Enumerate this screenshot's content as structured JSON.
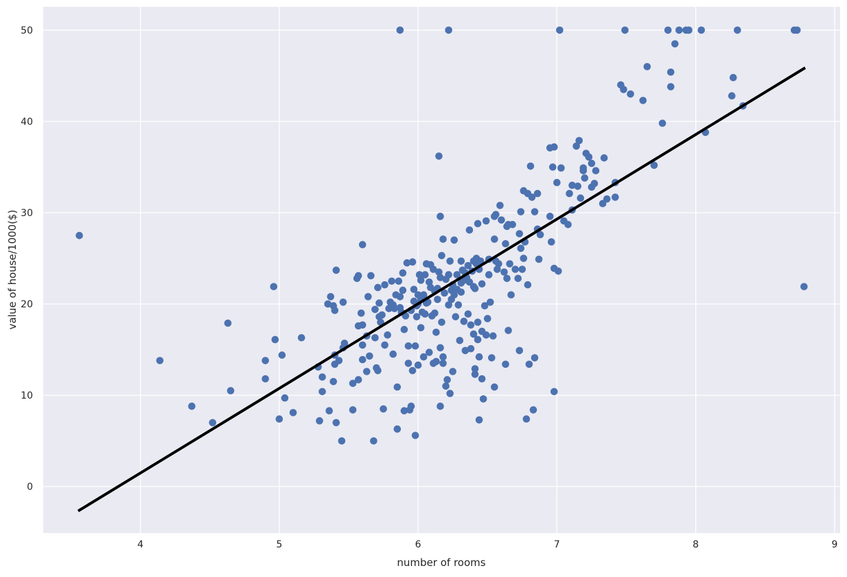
{
  "chart_data": {
    "type": "scatter",
    "title": "",
    "xlabel": "number of rooms",
    "ylabel": "value of house/1000($)",
    "xlim": [
      3.3,
      9.04
    ],
    "ylim": [
      -5.1,
      52.55
    ],
    "xticks": [
      4,
      5,
      6,
      7,
      8,
      9
    ],
    "yticks": [
      0,
      10,
      20,
      30,
      40,
      50
    ],
    "grid": true,
    "colors": {
      "background": "#eaeaf2",
      "grid": "#ffffff",
      "points": "#4c72b0",
      "fit_line": "#000000"
    },
    "regression_line": {
      "x": [
        3.56,
        8.78
      ],
      "y": [
        -2.6,
        45.8
      ]
    },
    "points": [
      [
        3.56,
        27.5
      ],
      [
        4.14,
        13.8
      ],
      [
        4.37,
        8.8
      ],
      [
        4.52,
        7.0
      ],
      [
        4.63,
        17.9
      ],
      [
        4.65,
        10.5
      ],
      [
        4.9,
        11.8
      ],
      [
        4.9,
        13.8
      ],
      [
        4.96,
        21.9
      ],
      [
        4.97,
        16.1
      ],
      [
        5.0,
        7.4
      ],
      [
        5.02,
        14.4
      ],
      [
        5.04,
        9.7
      ],
      [
        5.1,
        8.1
      ],
      [
        5.16,
        16.3
      ],
      [
        5.28,
        13.1
      ],
      [
        5.29,
        7.2
      ],
      [
        5.31,
        12.0
      ],
      [
        5.31,
        10.4
      ],
      [
        5.35,
        20.0
      ],
      [
        5.36,
        8.3
      ],
      [
        5.37,
        20.8
      ],
      [
        5.39,
        19.8
      ],
      [
        5.4,
        19.3
      ],
      [
        5.4,
        14.4
      ],
      [
        5.4,
        13.4
      ],
      [
        5.39,
        11.5
      ],
      [
        5.41,
        23.7
      ],
      [
        5.41,
        7.0
      ],
      [
        5.43,
        13.8
      ],
      [
        5.45,
        5.0
      ],
      [
        5.46,
        20.2
      ],
      [
        5.46,
        15.2
      ],
      [
        5.47,
        15.7
      ],
      [
        5.53,
        8.4
      ],
      [
        5.53,
        11.3
      ],
      [
        5.56,
        22.8
      ],
      [
        5.57,
        23.1
      ],
      [
        5.57,
        17.6
      ],
      [
        5.57,
        11.7
      ],
      [
        5.59,
        19.0
      ],
      [
        5.6,
        26.5
      ],
      [
        5.6,
        17.7
      ],
      [
        5.6,
        15.5
      ],
      [
        5.6,
        13.9
      ],
      [
        5.63,
        12.6
      ],
      [
        5.63,
        16.5
      ],
      [
        5.64,
        20.8
      ],
      [
        5.65,
        14.3
      ],
      [
        5.66,
        23.1
      ],
      [
        5.68,
        5.0
      ],
      [
        5.69,
        19.4
      ],
      [
        5.69,
        16.3
      ],
      [
        5.7,
        13.0
      ],
      [
        5.71,
        21.8
      ],
      [
        5.71,
        12.7
      ],
      [
        5.72,
        20.1
      ],
      [
        5.72,
        18.6
      ],
      [
        5.73,
        18.0
      ],
      [
        5.74,
        18.8
      ],
      [
        5.75,
        8.5
      ],
      [
        5.76,
        22.1
      ],
      [
        5.76,
        15.5
      ],
      [
        5.78,
        16.6
      ],
      [
        5.79,
        19.5
      ],
      [
        5.8,
        20.2
      ],
      [
        5.81,
        22.5
      ],
      [
        5.82,
        14.5
      ],
      [
        5.83,
        19.5
      ],
      [
        5.84,
        21.0
      ],
      [
        5.85,
        10.9
      ],
      [
        5.85,
        6.3
      ],
      [
        5.86,
        22.5
      ],
      [
        5.87,
        20.8
      ],
      [
        5.87,
        50
      ],
      [
        5.88,
        19.1
      ],
      [
        5.89,
        21.5
      ],
      [
        5.89,
        23.4
      ],
      [
        5.9,
        8.3
      ],
      [
        5.9,
        17.2
      ],
      [
        5.92,
        24.5
      ],
      [
        5.93,
        15.4
      ],
      [
        5.93,
        13.5
      ],
      [
        5.94,
        8.4
      ],
      [
        5.95,
        19.3
      ],
      [
        5.95,
        8.8
      ],
      [
        5.96,
        24.6
      ],
      [
        5.96,
        12.7
      ],
      [
        5.97,
        21.6
      ],
      [
        5.98,
        15.4
      ],
      [
        5.98,
        5.6
      ],
      [
        5.99,
        18.6
      ],
      [
        5.99,
        19.8
      ],
      [
        6.0,
        21.0
      ],
      [
        6.0,
        13.3
      ],
      [
        6.01,
        23.2
      ],
      [
        6.02,
        22.6
      ],
      [
        6.02,
        17.4
      ],
      [
        6.03,
        19.1
      ],
      [
        6.04,
        14.2
      ],
      [
        6.04,
        21.0
      ],
      [
        6.05,
        23.2
      ],
      [
        6.06,
        24.4
      ],
      [
        6.07,
        20.2
      ],
      [
        6.08,
        14.7
      ],
      [
        6.09,
        21.8
      ],
      [
        6.09,
        24.3
      ],
      [
        6.1,
        18.7
      ],
      [
        6.11,
        13.5
      ],
      [
        6.11,
        23.8
      ],
      [
        6.12,
        21.4
      ],
      [
        6.13,
        16.9
      ],
      [
        6.13,
        13.7
      ],
      [
        6.14,
        21.7
      ],
      [
        6.15,
        36.2
      ],
      [
        6.15,
        23.5
      ],
      [
        6.16,
        15.2
      ],
      [
        6.16,
        8.8
      ],
      [
        6.16,
        29.6
      ],
      [
        6.17,
        18.0
      ],
      [
        6.17,
        25.3
      ],
      [
        6.18,
        27.1
      ],
      [
        6.18,
        14.2
      ],
      [
        6.18,
        13.5
      ],
      [
        6.2,
        11.0
      ],
      [
        6.21,
        11.7
      ],
      [
        6.22,
        50
      ],
      [
        6.22,
        23.2
      ],
      [
        6.22,
        19.9
      ],
      [
        6.23,
        10.2
      ],
      [
        6.23,
        24.7
      ],
      [
        6.24,
        21.5
      ],
      [
        6.25,
        22.1
      ],
      [
        6.25,
        12.6
      ],
      [
        6.26,
        27.0
      ],
      [
        6.26,
        21.0
      ],
      [
        6.27,
        18.6
      ],
      [
        6.28,
        23.2
      ],
      [
        6.29,
        19.9
      ],
      [
        6.3,
        16.0
      ],
      [
        6.31,
        21.3
      ],
      [
        6.31,
        24.7
      ],
      [
        6.31,
        22.3
      ],
      [
        6.32,
        23.7
      ],
      [
        6.33,
        18.1
      ],
      [
        6.34,
        14.9
      ],
      [
        6.35,
        22.9
      ],
      [
        6.36,
        24.2
      ],
      [
        6.36,
        18.9
      ],
      [
        6.37,
        28.1
      ],
      [
        6.38,
        15.1
      ],
      [
        6.38,
        17.7
      ],
      [
        6.39,
        23.6
      ],
      [
        6.4,
        21.9
      ],
      [
        6.4,
        24.7
      ],
      [
        6.4,
        16.7
      ],
      [
        6.41,
        12.3
      ],
      [
        6.41,
        12.9
      ],
      [
        6.41,
        21.7
      ],
      [
        6.42,
        25.0
      ],
      [
        6.43,
        16.1
      ],
      [
        6.43,
        18.0
      ],
      [
        6.43,
        28.8
      ],
      [
        6.44,
        7.3
      ],
      [
        6.44,
        14.2
      ],
      [
        6.44,
        23.8
      ],
      [
        6.45,
        24.7
      ],
      [
        6.46,
        22.2
      ],
      [
        6.46,
        17.0
      ],
      [
        6.46,
        11.8
      ],
      [
        6.47,
        9.6
      ],
      [
        6.48,
        19.8
      ],
      [
        6.49,
        29.1
      ],
      [
        6.49,
        16.6
      ],
      [
        6.5,
        18.4
      ],
      [
        6.51,
        24.9
      ],
      [
        6.51,
        23.2
      ],
      [
        6.52,
        20.2
      ],
      [
        6.53,
        14.1
      ],
      [
        6.54,
        16.5
      ],
      [
        6.55,
        10.9
      ],
      [
        6.55,
        27.1
      ],
      [
        6.55,
        29.6
      ],
      [
        6.56,
        24.7
      ],
      [
        6.56,
        29.8
      ],
      [
        6.57,
        23.8
      ],
      [
        6.58,
        24.4
      ],
      [
        6.59,
        30.8
      ],
      [
        6.6,
        29.2
      ],
      [
        6.62,
        23.5
      ],
      [
        6.63,
        26.6
      ],
      [
        6.63,
        13.4
      ],
      [
        6.64,
        28.5
      ],
      [
        6.64,
        22.8
      ],
      [
        6.65,
        28.7
      ],
      [
        6.65,
        17.1
      ],
      [
        6.66,
        24.4
      ],
      [
        6.67,
        21.0
      ],
      [
        6.68,
        28.7
      ],
      [
        6.7,
        23.8
      ],
      [
        6.72,
        22.8
      ],
      [
        6.73,
        14.9
      ],
      [
        6.73,
        27.7
      ],
      [
        6.74,
        30.1
      ],
      [
        6.74,
        26.1
      ],
      [
        6.75,
        23.8
      ],
      [
        6.76,
        32.4
      ],
      [
        6.76,
        25.0
      ],
      [
        6.77,
        26.8
      ],
      [
        6.78,
        7.4
      ],
      [
        6.79,
        32.1
      ],
      [
        6.79,
        22.1
      ],
      [
        6.8,
        13.4
      ],
      [
        6.81,
        35.1
      ],
      [
        6.82,
        31.7
      ],
      [
        6.83,
        8.4
      ],
      [
        6.84,
        14.1
      ],
      [
        6.84,
        30.1
      ],
      [
        6.86,
        32.1
      ],
      [
        6.86,
        28.2
      ],
      [
        6.87,
        24.9
      ],
      [
        6.88,
        27.6
      ],
      [
        6.95,
        29.6
      ],
      [
        6.95,
        37.1
      ],
      [
        6.96,
        26.8
      ],
      [
        6.97,
        35.0
      ],
      [
        6.98,
        10.4
      ],
      [
        6.98,
        23.9
      ],
      [
        6.98,
        37.2
      ],
      [
        7.0,
        33.3
      ],
      [
        7.01,
        23.6
      ],
      [
        7.02,
        50
      ],
      [
        7.03,
        34.9
      ],
      [
        7.05,
        29.1
      ],
      [
        7.08,
        28.7
      ],
      [
        7.09,
        32.1
      ],
      [
        7.11,
        33.0
      ],
      [
        7.11,
        30.3
      ],
      [
        7.14,
        37.3
      ],
      [
        7.15,
        32.9
      ],
      [
        7.16,
        37.9
      ],
      [
        7.17,
        31.6
      ],
      [
        7.19,
        34.9
      ],
      [
        7.19,
        34.6
      ],
      [
        7.2,
        33.8
      ],
      [
        7.21,
        36.5
      ],
      [
        7.23,
        36.1
      ],
      [
        7.25,
        32.8
      ],
      [
        7.25,
        35.4
      ],
      [
        7.27,
        33.2
      ],
      [
        7.28,
        34.6
      ],
      [
        7.33,
        31.0
      ],
      [
        7.34,
        36.0
      ],
      [
        7.36,
        31.5
      ],
      [
        7.42,
        33.3
      ],
      [
        7.42,
        31.7
      ],
      [
        7.46,
        44.0
      ],
      [
        7.48,
        43.5
      ],
      [
        7.49,
        50
      ],
      [
        7.53,
        43.0
      ],
      [
        7.62,
        42.3
      ],
      [
        7.65,
        46.0
      ],
      [
        7.7,
        35.2
      ],
      [
        7.76,
        39.8
      ],
      [
        7.8,
        50
      ],
      [
        7.82,
        45.4
      ],
      [
        7.82,
        43.8
      ],
      [
        7.85,
        48.5
      ],
      [
        7.88,
        50
      ],
      [
        7.93,
        50
      ],
      [
        7.95,
        50
      ],
      [
        8.04,
        50
      ],
      [
        8.07,
        38.8
      ],
      [
        8.26,
        42.8
      ],
      [
        8.27,
        44.8
      ],
      [
        8.3,
        50
      ],
      [
        8.34,
        41.7
      ],
      [
        8.71,
        50
      ],
      [
        8.73,
        50
      ],
      [
        8.78,
        21.9
      ],
      [
        5.97,
        20.3
      ],
      [
        6.02,
        20.6
      ],
      [
        6.06,
        20.1
      ],
      [
        6.14,
        20.5
      ],
      [
        6.19,
        21.2
      ],
      [
        6.24,
        20.5
      ],
      [
        6.33,
        22.6
      ],
      [
        6.37,
        22.4
      ],
      [
        6.05,
        18.9
      ],
      [
        5.91,
        18.7
      ],
      [
        6.12,
        19.0
      ],
      [
        6.2,
        22.7
      ],
      [
        6.28,
        21.6
      ],
      [
        6.34,
        23.4
      ],
      [
        6.42,
        24.4
      ],
      [
        6.0,
        20.0
      ],
      [
        5.87,
        19.6
      ],
      [
        5.82,
        19.9
      ],
      [
        6.08,
        22.4
      ],
      [
        6.16,
        22.9
      ]
    ]
  }
}
